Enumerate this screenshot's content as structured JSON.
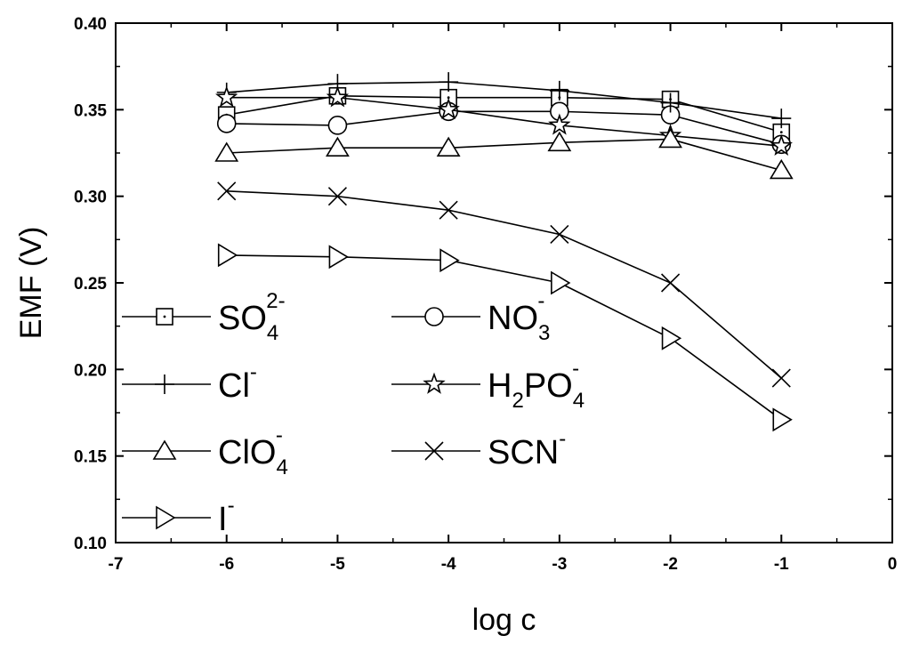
{
  "chart_data": {
    "type": "line",
    "xlabel": "log c",
    "ylabel": "EMF (V)",
    "xlim": [
      -7,
      0
    ],
    "ylim": [
      0.1,
      0.4
    ],
    "x_ticks": [
      "-7",
      "-6",
      "-5",
      "-4",
      "-3",
      "-2",
      "-1",
      "0"
    ],
    "y_ticks": [
      "0.10",
      "0.15",
      "0.20",
      "0.25",
      "0.30",
      "0.35",
      "0.40"
    ],
    "x": [
      -6,
      -5,
      -4,
      -3,
      -2,
      -1
    ],
    "legend_position": "left-center",
    "series": [
      {
        "key": "so4",
        "marker": "square-dot",
        "label_main": "SO",
        "label_sub": "4",
        "label_sup": "2-",
        "values": [
          0.347,
          0.358,
          0.357,
          0.357,
          0.356,
          0.337
        ]
      },
      {
        "key": "no3",
        "marker": "circle",
        "label_main": "NO",
        "label_sub": "3",
        "label_sup": "-",
        "values": [
          0.342,
          0.341,
          0.349,
          0.349,
          0.347,
          0.33
        ]
      },
      {
        "key": "cl",
        "marker": "plus",
        "label_main": "Cl",
        "label_sub": "",
        "label_sup": "-",
        "values": [
          0.36,
          0.365,
          0.366,
          0.361,
          0.354,
          0.345
        ]
      },
      {
        "key": "h2po4",
        "marker": "star",
        "label_main": "H",
        "label_sub": "2",
        "label_main2": "PO",
        "label_sub2": "4",
        "label_sup": "-",
        "values": [
          0.357,
          0.357,
          0.35,
          0.341,
          0.335,
          0.329
        ]
      },
      {
        "key": "clo4",
        "marker": "triangle-up",
        "label_main": "ClO",
        "label_sub": "4",
        "label_sup": "-",
        "values": [
          0.325,
          0.328,
          0.328,
          0.331,
          0.333,
          0.315
        ]
      },
      {
        "key": "scn",
        "marker": "x",
        "label_main": "SCN",
        "label_sub": "",
        "label_sup": "-",
        "values": [
          0.303,
          0.3,
          0.292,
          0.278,
          0.25,
          0.195
        ]
      },
      {
        "key": "i",
        "marker": "triangle-right",
        "label_main": "I",
        "label_sub": "",
        "label_sup": "-",
        "values": [
          0.266,
          0.265,
          0.263,
          0.25,
          0.218,
          0.171
        ]
      }
    ]
  }
}
